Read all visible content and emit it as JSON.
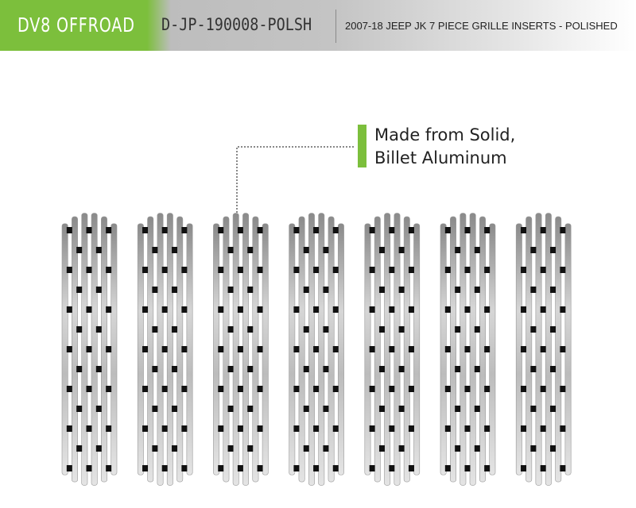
{
  "header": {
    "brand": "DV8 OFFROAD",
    "sku": "D-JP-190008-POLSH",
    "title": "2007-18 JEEP JK 7 PIECE GRILLE INSERTS - POLISHED"
  },
  "callout": {
    "line1": "Made from Solid,",
    "line2": "Billet Aluminum"
  },
  "product": {
    "piece_count": 7
  },
  "colors": {
    "accent": "#7cbf3c",
    "metal": "#c8c8c8"
  }
}
